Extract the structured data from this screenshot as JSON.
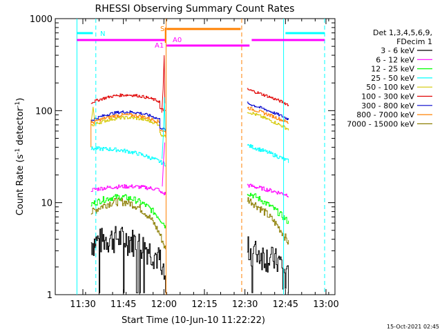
{
  "chart_data": {
    "type": "line",
    "title": "RHESSI Observing Summary Count Rates",
    "xlabel": "Start Time (10-Jun-10 11:22:22)",
    "ylabel": "Count Rate (s⁻¹ detector⁻¹)",
    "ylabel_main": "Count Rate (s",
    "ylabel_mid": " detector",
    "ylabel_end": ")",
    "ylabel_sup": "-1",
    "footer": "15-Oct-2021 02:45",
    "y_scale": "log",
    "ylim": [
      1,
      1000
    ],
    "xlim_minutes": [
      690.0,
      785.0
    ],
    "x_ticks": [
      {
        "label": "11:30",
        "m": 690
      },
      {
        "label": "11:45",
        "m": 705
      },
      {
        "label": "12:00",
        "m": 720
      },
      {
        "label": "12:15",
        "m": 735
      },
      {
        "label": "12:30",
        "m": 750
      },
      {
        "label": "12:45",
        "m": 765
      },
      {
        "label": "13:00",
        "m": 780
      }
    ],
    "y_ticks": [
      {
        "label": "1",
        "v": 1
      },
      {
        "label": "10",
        "v": 10
      },
      {
        "label": "100",
        "v": 100
      },
      {
        "label": "1000",
        "v": 1000
      }
    ],
    "legend_header": [
      "Det 1,3,4,5,6,9,",
      "FDecim 1"
    ],
    "legend_location": "right",
    "series": [
      {
        "name": "3 - 6 keV",
        "color": "#000000"
      },
      {
        "name": "6 - 12 keV",
        "color": "#ff00ff"
      },
      {
        "name": "12 - 25 keV",
        "color": "#00ff00"
      },
      {
        "name": "25 - 50 keV",
        "color": "#00ffff"
      },
      {
        "name": "50 - 100 keV",
        "color": "#d4c800"
      },
      {
        "name": "100 - 300 keV",
        "color": "#e00000"
      },
      {
        "name": "300 - 800 keV",
        "color": "#0000cc"
      },
      {
        "name": "800 - 7000 keV",
        "color": "#ff8000"
      },
      {
        "name": "7000 - 15000 keV",
        "color": "#8b7d00"
      }
    ],
    "flags": {
      "N": "N",
      "S": "S",
      "A0": "A0",
      "A1": "A1"
    }
  }
}
